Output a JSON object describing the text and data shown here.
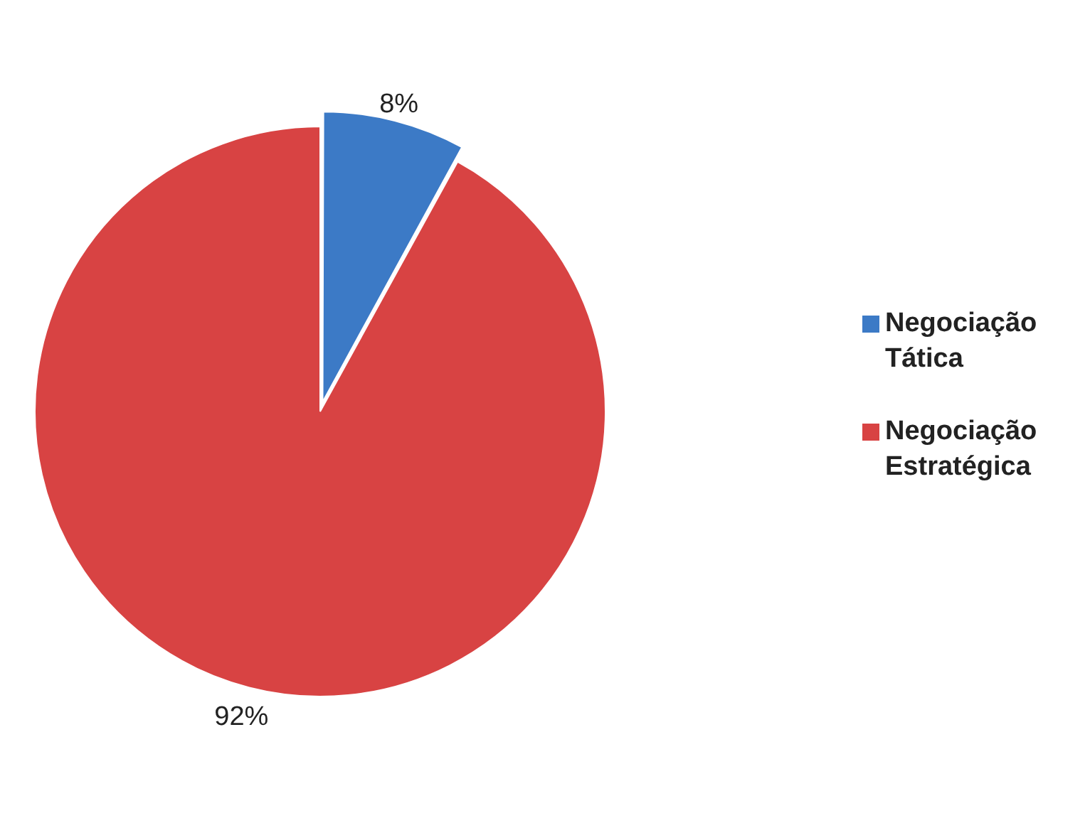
{
  "chart_data": {
    "type": "pie",
    "categories": [
      "Negociação Tática",
      "Negociação Estratégica"
    ],
    "values": [
      8,
      92
    ],
    "colors": [
      "#3c7ac6",
      "#d84343"
    ],
    "value_labels": [
      "8%",
      "92%"
    ],
    "legend": "right"
  }
}
